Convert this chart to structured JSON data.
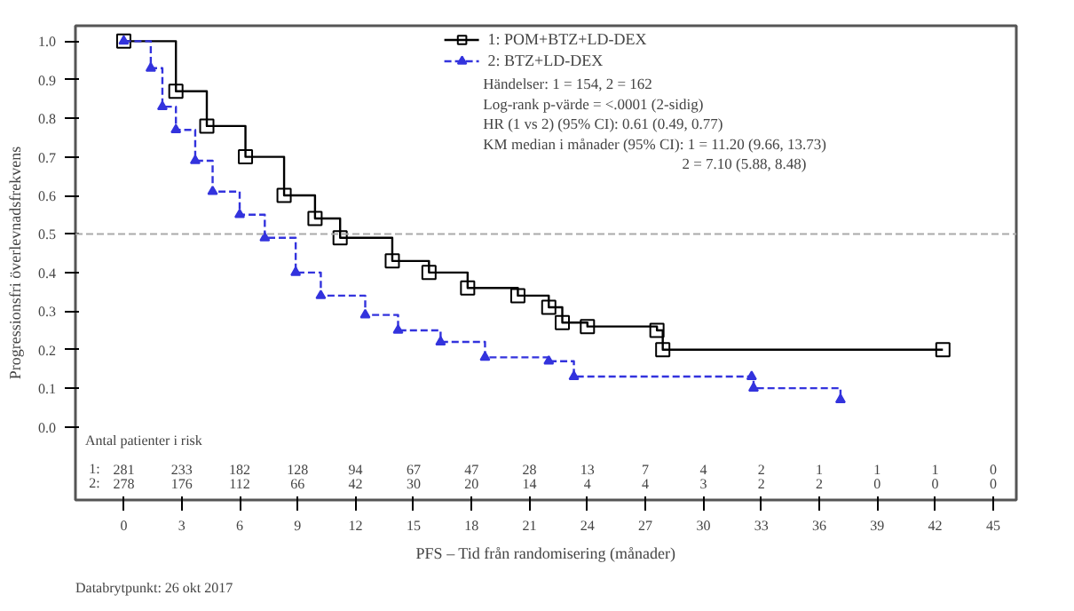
{
  "chart_data": {
    "type": "step",
    "xlabel": "PFS – Tid från randomisering (månader)",
    "ylabel": "Progressionsfri överlevnadsfrekvens",
    "xlim": [
      -2.5,
      46.2
    ],
    "ylim": [
      -0.19,
      1.04
    ],
    "xticks": [
      0,
      3,
      6,
      9,
      12,
      15,
      18,
      21,
      24,
      27,
      30,
      33,
      36,
      39,
      42,
      45
    ],
    "yticks": [
      {
        "value": 0,
        "label": "0.0"
      },
      0.1,
      0.2,
      0.3,
      0.4,
      0.5,
      0.6,
      0.7,
      0.8,
      0.9,
      {
        "value": 1,
        "label": "1.0"
      }
    ],
    "legend": "top",
    "grid": false,
    "series": [
      {
        "name": "1: POM+BTZ+LD-DEX",
        "color": "#000000",
        "marker": "square",
        "line_style": "solid",
        "x": [
          0,
          2.7,
          4.3,
          6.3,
          8.3,
          9.9,
          11.2,
          13.9,
          15.8,
          17.8,
          20.4,
          22,
          22.7,
          24,
          27.6,
          27.9,
          42.4
        ],
        "values": [
          1.0,
          0.87,
          0.78,
          0.7,
          0.6,
          0.54,
          0.49,
          0.43,
          0.4,
          0.36,
          0.34,
          0.31,
          0.27,
          0.26,
          0.25,
          0.2,
          0.2
        ]
      },
      {
        "name": "2: BTZ+LD-DEX",
        "color": "#3333dd",
        "marker": "triangle",
        "line_style": "dashed",
        "x": [
          0,
          1.4,
          2.0,
          2.7,
          3.7,
          4.6,
          6.0,
          7.3,
          8.9,
          10.2,
          12.5,
          14.2,
          16.4,
          18.7,
          22,
          23.3,
          32.5,
          32.6,
          37.1
        ],
        "values": [
          1.0,
          0.93,
          0.83,
          0.77,
          0.69,
          0.61,
          0.55,
          0.49,
          0.4,
          0.34,
          0.29,
          0.25,
          0.22,
          0.18,
          0.17,
          0.13,
          0.13,
          0.1,
          0.07
        ]
      }
    ],
    "ref_lines": [
      {
        "axis": "y",
        "value": 0.5,
        "color": "#aaaaaa",
        "line_style": "dashed"
      }
    ],
    "annotations": [
      "Händelser: 1 = 154, 2 = 162",
      "Log-rank p-värde = <.0001 (2-sidig)",
      "HR (1 vs 2) (95% CI):  0.61 (0.49, 0.77)",
      "KM median i månader (95% CI): 1 = 11.20 (9.66, 13.73)",
      "2 = 7.10 (5.88, 8.48)",
      "Antal patienter i risk",
      "1: 281 233 182 128 94 67 47 28 13 7 4 2 1 1 1 0",
      "2: 278 176 112 66 42 30 20 14 4 4 3 2 2 0 0 0",
      "Databrytpunkt: 26 okt 2017"
    ]
  }
}
